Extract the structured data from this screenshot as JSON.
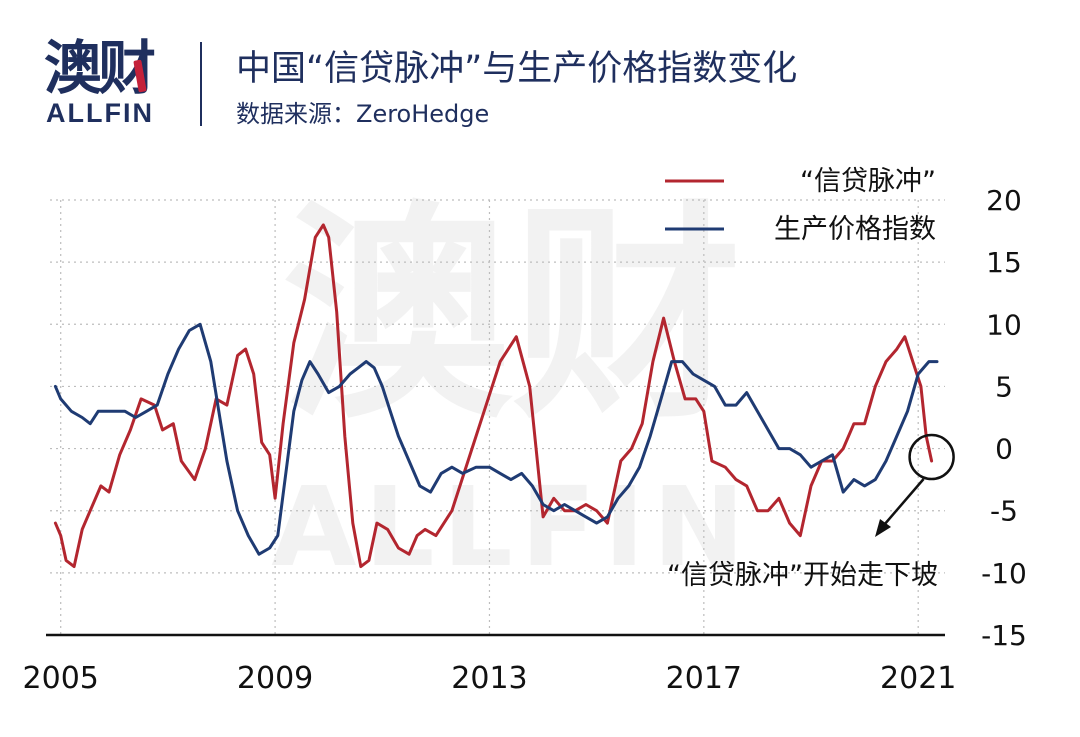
{
  "brand": {
    "name_cn": "澳财",
    "name_en": "ALLFIN"
  },
  "header": {
    "title": "中国“信贷脉冲”与生产价格指数变化",
    "subtitle": "数据来源：ZeroHedge"
  },
  "colors": {
    "credit": "#b3262f",
    "ppi": "#1f3b73",
    "brand": "#1f2f5e",
    "accent": "#c4213a"
  },
  "annotation": {
    "text": "“信贷脉冲”开始走下坡"
  },
  "chart_data": {
    "type": "line",
    "title": "",
    "xlabel": "",
    "ylabel": "",
    "x_ticks": [
      2005,
      2009,
      2013,
      2017,
      2021
    ],
    "y_ticks": [
      20,
      15,
      10,
      5,
      0,
      -5,
      -10,
      -15
    ],
    "xlim": [
      2004.8,
      2021.5
    ],
    "ylim": [
      -15,
      20
    ],
    "grid": true,
    "legend_position": "top-right",
    "watermark": "澳财 ALLFIN",
    "series": [
      {
        "name": "“信贷脉冲”",
        "color": "#b3262f",
        "x": [
          2004.9,
          2005.0,
          2005.1,
          2005.25,
          2005.4,
          2005.55,
          2005.75,
          2005.9,
          2006.1,
          2006.3,
          2006.5,
          2006.75,
          2006.9,
          2007.1,
          2007.25,
          2007.5,
          2007.7,
          2007.9,
          2008.1,
          2008.3,
          2008.45,
          2008.6,
          2008.75,
          2008.9,
          2009.0,
          2009.15,
          2009.35,
          2009.55,
          2009.75,
          2009.9,
          2010.0,
          2010.15,
          2010.3,
          2010.45,
          2010.6,
          2010.75,
          2010.9,
          2011.1,
          2011.3,
          2011.5,
          2011.65,
          2011.8,
          2012.0,
          2012.3,
          2012.6,
          2012.9,
          2013.2,
          2013.5,
          2013.75,
          2014.0,
          2014.2,
          2014.4,
          2014.6,
          2014.8,
          2015.0,
          2015.2,
          2015.45,
          2015.65,
          2015.85,
          2016.05,
          2016.25,
          2016.45,
          2016.65,
          2016.85,
          2017.0,
          2017.15,
          2017.4,
          2017.6,
          2017.8,
          2018.0,
          2018.2,
          2018.4,
          2018.6,
          2018.8,
          2019.0,
          2019.2,
          2019.4,
          2019.6,
          2019.8,
          2020.0,
          2020.2,
          2020.4,
          2020.6,
          2020.75,
          2020.9,
          2021.05,
          2021.15,
          2021.25
        ],
        "values": [
          -6,
          -7,
          -9,
          -9.5,
          -6.5,
          -5,
          -3,
          -3.5,
          -0.5,
          1.5,
          4,
          3.5,
          1.5,
          2,
          -1,
          -2.5,
          0,
          4,
          3.5,
          7.5,
          8,
          6,
          0.5,
          -0.5,
          -4,
          2,
          8.5,
          12,
          17,
          18,
          17,
          11,
          1,
          -6,
          -9.5,
          -9,
          -6,
          -6.5,
          -8,
          -8.5,
          -7,
          -6.5,
          -7,
          -5,
          -1,
          3,
          7,
          9,
          5,
          -5.5,
          -4,
          -5,
          -5,
          -4.5,
          -5,
          -6,
          -1,
          0,
          2,
          7,
          10.5,
          7,
          4,
          4,
          3,
          -1,
          -1.5,
          -2.5,
          -3,
          -5,
          -5,
          -4,
          -6,
          -7,
          -3,
          -1,
          -1,
          0,
          2,
          2,
          5,
          7,
          8,
          9,
          7,
          5,
          1,
          -1
        ]
      },
      {
        "name": "生产价格指数",
        "color": "#1f3b73",
        "x": [
          2004.9,
          2005.0,
          2005.2,
          2005.4,
          2005.55,
          2005.7,
          2005.85,
          2006.0,
          2006.2,
          2006.4,
          2006.6,
          2006.8,
          2007.0,
          2007.2,
          2007.4,
          2007.6,
          2007.8,
          2007.95,
          2008.1,
          2008.3,
          2008.5,
          2008.7,
          2008.9,
          2009.05,
          2009.2,
          2009.35,
          2009.5,
          2009.65,
          2009.8,
          2010.0,
          2010.2,
          2010.4,
          2010.55,
          2010.7,
          2010.85,
          2011.0,
          2011.15,
          2011.3,
          2011.5,
          2011.7,
          2011.9,
          2012.1,
          2012.3,
          2012.5,
          2012.75,
          2013.0,
          2013.2,
          2013.4,
          2013.6,
          2013.8,
          2014.0,
          2014.2,
          2014.4,
          2014.6,
          2014.8,
          2015.0,
          2015.2,
          2015.4,
          2015.6,
          2015.8,
          2016.0,
          2016.2,
          2016.4,
          2016.6,
          2016.8,
          2017.0,
          2017.2,
          2017.4,
          2017.6,
          2017.8,
          2018.0,
          2018.2,
          2018.4,
          2018.6,
          2018.8,
          2019.0,
          2019.2,
          2019.4,
          2019.6,
          2019.8,
          2020.0,
          2020.2,
          2020.4,
          2020.6,
          2020.8,
          2021.0,
          2021.2,
          2021.35
        ],
        "values": [
          5,
          4,
          3,
          2.5,
          2,
          3,
          3,
          3,
          3,
          2.5,
          3,
          3.5,
          6,
          8,
          9.5,
          10,
          7,
          3,
          -1,
          -5,
          -7,
          -8.5,
          -8,
          -7,
          -2,
          3,
          5.5,
          7,
          6,
          4.5,
          5,
          6,
          6.5,
          7,
          6.5,
          5,
          3,
          1,
          -1,
          -3,
          -3.5,
          -2,
          -1.5,
          -2,
          -1.5,
          -1.5,
          -2,
          -2.5,
          -2,
          -3,
          -4.5,
          -5,
          -4.5,
          -5,
          -5.5,
          -6,
          -5.5,
          -4,
          -3,
          -1.5,
          1,
          4,
          7,
          7,
          6,
          5.5,
          5,
          3.5,
          3.5,
          4.5,
          3,
          1.5,
          0,
          0,
          -0.5,
          -1.5,
          -1,
          -0.5,
          -3.5,
          -2.5,
          -3,
          -2.5,
          -1,
          1,
          3,
          6,
          7,
          7
        ]
      }
    ]
  }
}
